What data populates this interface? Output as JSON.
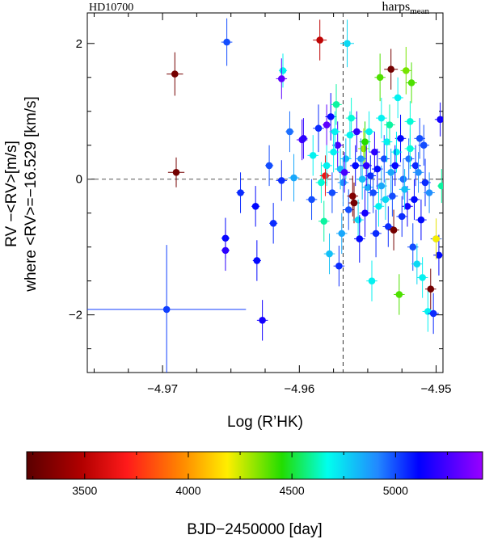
{
  "chart_data": {
    "type": "scatter",
    "star": "HD10700",
    "instrument": "harps",
    "instrument_sub": "mean",
    "xlabel": "Log (R’HK)",
    "ylabel_line1": "RV −<RV>[m/s]",
    "ylabel_line2": "where <RV>=−16.529 [km/s]",
    "xlim": [
      -4.9755,
      -4.9495
    ],
    "ylim": [
      -2.85,
      2.45
    ],
    "x_ticks": [
      -4.97,
      -4.96,
      -4.95
    ],
    "x_tick_labels": [
      "−4.97",
      "−4.96",
      "−4.95"
    ],
    "y_ticks": [
      -2,
      0,
      2
    ],
    "y_tick_labels": [
      "−2",
      "0",
      "2"
    ],
    "ref_hline": 0,
    "ref_vline": -4.9568,
    "colorbar": {
      "label": "BJD−2450000 [day]",
      "range": [
        3220,
        5420
      ],
      "ticks": [
        3500,
        4000,
        4500,
        5000
      ],
      "tick_labels": [
        "3500",
        "4000",
        "4500",
        "5000"
      ]
    },
    "points": [
      {
        "x": -4.9691,
        "y": 1.55,
        "xerr": 0.0006,
        "yerr": 0.32,
        "t": 3300
      },
      {
        "x": -4.969,
        "y": 0.1,
        "xerr": 0.0006,
        "yerr": 0.22,
        "t": 3300
      },
      {
        "x": -4.9697,
        "y": -1.92,
        "xerr": 0.0058,
        "yerr": 0.95,
        "t": 5020
      },
      {
        "x": -4.9653,
        "y": 2.02,
        "xerr": 0.0004,
        "yerr": 0.35,
        "t": 5000
      },
      {
        "x": -4.9654,
        "y": -0.87,
        "xerr": 0.0003,
        "yerr": 0.3,
        "t": 5100
      },
      {
        "x": -4.9654,
        "y": -1.05,
        "xerr": 0.0003,
        "yerr": 0.3,
        "t": 5200
      },
      {
        "x": -4.9643,
        "y": -0.2,
        "xerr": 0.0003,
        "yerr": 0.3,
        "t": 5050
      },
      {
        "x": -4.9632,
        "y": -0.4,
        "xerr": 0.0003,
        "yerr": 0.3,
        "t": 5100
      },
      {
        "x": -4.9631,
        "y": -1.2,
        "xerr": 0.0003,
        "yerr": 0.3,
        "t": 5100
      },
      {
        "x": -4.9627,
        "y": -2.08,
        "xerr": 0.0004,
        "yerr": 0.3,
        "t": 5150
      },
      {
        "x": -4.9619,
        "y": -0.65,
        "xerr": 0.0003,
        "yerr": 0.3,
        "t": 5050
      },
      {
        "x": -4.9622,
        "y": 0.2,
        "xerr": 0.0003,
        "yerr": 0.3,
        "t": 5000
      },
      {
        "x": -4.9613,
        "y": -0.02,
        "xerr": 0.0004,
        "yerr": 0.3,
        "t": 5050
      },
      {
        "x": -4.9612,
        "y": 1.6,
        "xerr": 0.0003,
        "yerr": 0.25,
        "t": 4700
      },
      {
        "x": -4.9613,
        "y": 1.48,
        "xerr": 0.0004,
        "yerr": 0.3,
        "t": 5300
      },
      {
        "x": -4.9607,
        "y": 0.7,
        "xerr": 0.0003,
        "yerr": 0.3,
        "t": 4950
      },
      {
        "x": -4.9604,
        "y": 0.02,
        "xerr": 0.0004,
        "yerr": 0.35,
        "t": 4850
      },
      {
        "x": -4.9598,
        "y": 0.58,
        "xerr": 0.0004,
        "yerr": 0.3,
        "t": 5250
      },
      {
        "x": -4.9597,
        "y": 0.6,
        "xerr": 0.0003,
        "yerr": 0.3,
        "t": 5200
      },
      {
        "x": -4.9585,
        "y": 2.05,
        "xerr": 0.0005,
        "yerr": 0.3,
        "t": 3520
      },
      {
        "x": -4.9591,
        "y": -0.3,
        "xerr": 0.0004,
        "yerr": 0.3,
        "t": 5000
      },
      {
        "x": -4.959,
        "y": 0.35,
        "xerr": 0.0004,
        "yerr": 0.3,
        "t": 4700
      },
      {
        "x": -4.9586,
        "y": 0.75,
        "xerr": 0.0004,
        "yerr": 0.35,
        "t": 5050
      },
      {
        "x": -4.9584,
        "y": -0.05,
        "xerr": 0.0004,
        "yerr": 0.3,
        "t": 4650
      },
      {
        "x": -4.9581,
        "y": 0.05,
        "xerr": 0.0004,
        "yerr": 0.3,
        "t": 3650
      },
      {
        "x": -4.9582,
        "y": -0.62,
        "xerr": 0.0004,
        "yerr": 0.3,
        "t": 4600
      },
      {
        "x": -4.958,
        "y": 0.8,
        "xerr": 0.0003,
        "yerr": 0.3,
        "t": 5300
      },
      {
        "x": -4.9578,
        "y": -1.1,
        "xerr": 0.0004,
        "yerr": 0.3,
        "t": 4800
      },
      {
        "x": -4.9577,
        "y": 0.92,
        "xerr": 0.0004,
        "yerr": 0.35,
        "t": 5100
      },
      {
        "x": -4.9573,
        "y": 1.1,
        "xerr": 0.0004,
        "yerr": 0.3,
        "t": 4600
      },
      {
        "x": -4.9572,
        "y": 0.5,
        "xerr": 0.0004,
        "yerr": 0.35,
        "t": 5250
      },
      {
        "x": -4.9571,
        "y": -1.28,
        "xerr": 0.0004,
        "yerr": 0.3,
        "t": 5050
      },
      {
        "x": -4.9568,
        "y": -0.05,
        "xerr": 0.0004,
        "yerr": 0.35,
        "t": 4900
      },
      {
        "x": -4.9565,
        "y": 2.0,
        "xerr": 0.0005,
        "yerr": 0.35,
        "t": 4750
      },
      {
        "x": -4.9566,
        "y": 0.3,
        "xerr": 0.0004,
        "yerr": 0.3,
        "t": 4800
      },
      {
        "x": -4.9564,
        "y": -0.45,
        "xerr": 0.0004,
        "yerr": 0.3,
        "t": 5000
      },
      {
        "x": -4.9563,
        "y": 0.65,
        "xerr": 0.0004,
        "yerr": 0.35,
        "t": 4700
      },
      {
        "x": -4.9561,
        "y": -0.25,
        "xerr": 0.0004,
        "yerr": 0.3,
        "t": 3350
      },
      {
        "x": -4.956,
        "y": -0.35,
        "xerr": 0.0004,
        "yerr": 0.3,
        "t": 3300
      },
      {
        "x": -4.9559,
        "y": 0.2,
        "xerr": 0.0004,
        "yerr": 0.3,
        "t": 5100
      },
      {
        "x": -4.9557,
        "y": -0.6,
        "xerr": 0.0004,
        "yerr": 0.3,
        "t": 4750
      },
      {
        "x": -4.9556,
        "y": -0.88,
        "xerr": 0.0004,
        "yerr": 0.35,
        "t": 5100
      },
      {
        "x": -4.9553,
        "y": 0.45,
        "xerr": 0.0004,
        "yerr": 0.3,
        "t": 4300
      },
      {
        "x": -4.9552,
        "y": 0.55,
        "xerr": 0.0004,
        "yerr": 0.3,
        "t": 4450
      },
      {
        "x": -4.955,
        "y": -0.12,
        "xerr": 0.0004,
        "yerr": 0.35,
        "t": 4850
      },
      {
        "x": -4.9548,
        "y": 0.05,
        "xerr": 0.0004,
        "yerr": 0.3,
        "t": 5050
      },
      {
        "x": -4.9547,
        "y": -1.5,
        "xerr": 0.0004,
        "yerr": 0.3,
        "t": 4700
      },
      {
        "x": -4.9545,
        "y": 0.4,
        "xerr": 0.0004,
        "yerr": 0.3,
        "t": 5200
      },
      {
        "x": -4.9544,
        "y": -0.8,
        "xerr": 0.0004,
        "yerr": 0.35,
        "t": 5050
      },
      {
        "x": -4.9541,
        "y": 1.5,
        "xerr": 0.0004,
        "yerr": 0.35,
        "t": 4400
      },
      {
        "x": -4.954,
        "y": 0.9,
        "xerr": 0.0004,
        "yerr": 0.3,
        "t": 4700
      },
      {
        "x": -4.9538,
        "y": 0.3,
        "xerr": 0.0004,
        "yerr": 0.35,
        "t": 5000
      },
      {
        "x": -4.9537,
        "y": -0.3,
        "xerr": 0.0004,
        "yerr": 0.3,
        "t": 4750
      },
      {
        "x": -4.9535,
        "y": -0.7,
        "xerr": 0.0004,
        "yerr": 0.3,
        "t": 5050
      },
      {
        "x": -4.9533,
        "y": 1.62,
        "xerr": 0.0005,
        "yerr": 0.3,
        "t": 3300
      },
      {
        "x": -4.9533,
        "y": 0.1,
        "xerr": 0.0004,
        "yerr": 0.35,
        "t": 4850
      },
      {
        "x": -4.9531,
        "y": -0.75,
        "xerr": 0.0004,
        "yerr": 0.3,
        "t": 3300
      },
      {
        "x": -4.9528,
        "y": 1.2,
        "xerr": 0.0004,
        "yerr": 0.3,
        "t": 4700
      },
      {
        "x": -4.9527,
        "y": -1.7,
        "xerr": 0.0004,
        "yerr": 0.3,
        "t": 4400
      },
      {
        "x": -4.9526,
        "y": 0.6,
        "xerr": 0.0004,
        "yerr": 0.35,
        "t": 5100
      },
      {
        "x": -4.9524,
        "y": 0.0,
        "xerr": 0.0004,
        "yerr": 0.3,
        "t": 4950
      },
      {
        "x": -4.9522,
        "y": 1.6,
        "xerr": 0.0004,
        "yerr": 0.35,
        "t": 4350
      },
      {
        "x": -4.9521,
        "y": -0.4,
        "xerr": 0.0004,
        "yerr": 0.3,
        "t": 5150
      },
      {
        "x": -4.9519,
        "y": 0.85,
        "xerr": 0.0004,
        "yerr": 0.3,
        "t": 4650
      },
      {
        "x": -4.9518,
        "y": 1.42,
        "xerr": 0.0004,
        "yerr": 0.3,
        "t": 4400
      },
      {
        "x": -4.9517,
        "y": -1.0,
        "xerr": 0.0004,
        "yerr": 0.35,
        "t": 5000
      },
      {
        "x": -4.9515,
        "y": 0.2,
        "xerr": 0.0004,
        "yerr": 0.3,
        "t": 5050
      },
      {
        "x": -4.9514,
        "y": -1.25,
        "xerr": 0.0004,
        "yerr": 0.3,
        "t": 4750
      },
      {
        "x": -4.9512,
        "y": 0.6,
        "xerr": 0.0004,
        "yerr": 0.3,
        "t": 5000
      },
      {
        "x": -4.9511,
        "y": -0.6,
        "xerr": 0.0004,
        "yerr": 0.3,
        "t": 5100
      },
      {
        "x": -4.951,
        "y": -1.45,
        "xerr": 0.0004,
        "yerr": 0.3,
        "t": 4700
      },
      {
        "x": -4.9508,
        "y": -0.05,
        "xerr": 0.0004,
        "yerr": 0.35,
        "t": 5050
      },
      {
        "x": -4.9506,
        "y": -1.95,
        "xerr": 0.0004,
        "yerr": 0.3,
        "t": 4700
      },
      {
        "x": -4.9504,
        "y": -1.62,
        "xerr": 0.0004,
        "yerr": 0.3,
        "t": 3300
      },
      {
        "x": -4.9502,
        "y": -1.98,
        "xerr": 0.0004,
        "yerr": 0.3,
        "t": 5050
      },
      {
        "x": -4.95,
        "y": -0.88,
        "xerr": 0.0004,
        "yerr": 0.3,
        "t": 5000
      },
      {
        "x": -4.9498,
        "y": -1.12,
        "xerr": 0.0004,
        "yerr": 0.3,
        "t": 5100
      },
      {
        "x": -4.9497,
        "y": 0.88,
        "xerr": 0.0004,
        "yerr": 0.25,
        "t": 5150
      },
      {
        "x": -4.9496,
        "y": -0.1,
        "xerr": 0.0003,
        "yerr": 0.25,
        "t": 4600
      },
      {
        "x": -4.9491,
        "y": -1.55,
        "xerr": 0.0003,
        "yerr": 0.25,
        "t": 4650
      },
      {
        "x": -4.95,
        "y": -0.88,
        "xerr": 0.0003,
        "yerr": 0.3,
        "t": 4200
      },
      {
        "x": -4.9575,
        "y": 0.4,
        "xerr": 0.0004,
        "yerr": 0.3,
        "t": 4700
      },
      {
        "x": -4.957,
        "y": 0.15,
        "xerr": 0.0004,
        "yerr": 0.3,
        "t": 4800
      },
      {
        "x": -4.9562,
        "y": 0.9,
        "xerr": 0.0004,
        "yerr": 0.3,
        "t": 4650
      },
      {
        "x": -4.9558,
        "y": 0.7,
        "xerr": 0.0004,
        "yerr": 0.3,
        "t": 5200
      },
      {
        "x": -4.9555,
        "y": 0.3,
        "xerr": 0.0004,
        "yerr": 0.3,
        "t": 4900
      },
      {
        "x": -4.9552,
        "y": -0.5,
        "xerr": 0.0004,
        "yerr": 0.35,
        "t": 5150
      },
      {
        "x": -4.9549,
        "y": 0.7,
        "xerr": 0.0004,
        "yerr": 0.3,
        "t": 4700
      },
      {
        "x": -4.9546,
        "y": -0.2,
        "xerr": 0.0004,
        "yerr": 0.3,
        "t": 5000
      },
      {
        "x": -4.9543,
        "y": 0.15,
        "xerr": 0.0004,
        "yerr": 0.3,
        "t": 5100
      },
      {
        "x": -4.954,
        "y": -0.1,
        "xerr": 0.0004,
        "yerr": 0.3,
        "t": 4850
      },
      {
        "x": -4.9536,
        "y": 0.55,
        "xerr": 0.0004,
        "yerr": 0.3,
        "t": 4700
      },
      {
        "x": -4.9532,
        "y": -0.25,
        "xerr": 0.0004,
        "yerr": 0.3,
        "t": 5000
      },
      {
        "x": -4.9529,
        "y": 0.4,
        "xerr": 0.0004,
        "yerr": 0.3,
        "t": 4700
      },
      {
        "x": -4.9525,
        "y": -0.55,
        "xerr": 0.0004,
        "yerr": 0.3,
        "t": 5050
      },
      {
        "x": -4.952,
        "y": 0.3,
        "xerr": 0.0004,
        "yerr": 0.3,
        "t": 4950
      },
      {
        "x": -4.9516,
        "y": -0.3,
        "xerr": 0.0004,
        "yerr": 0.3,
        "t": 5100
      },
      {
        "x": -4.9513,
        "y": 0.1,
        "xerr": 0.0004,
        "yerr": 0.3,
        "t": 4900
      },
      {
        "x": -4.9509,
        "y": 0.5,
        "xerr": 0.0004,
        "yerr": 0.3,
        "t": 5000
      },
      {
        "x": -4.958,
        "y": 0.2,
        "xerr": 0.0004,
        "yerr": 0.3,
        "t": 4700
      },
      {
        "x": -4.9576,
        "y": -0.2,
        "xerr": 0.0004,
        "yerr": 0.3,
        "t": 5000
      },
      {
        "x": -4.9574,
        "y": 0.7,
        "xerr": 0.0004,
        "yerr": 0.3,
        "t": 4700
      },
      {
        "x": -4.9569,
        "y": -0.8,
        "xerr": 0.0004,
        "yerr": 0.3,
        "t": 4850
      },
      {
        "x": -4.9567,
        "y": 0.1,
        "xerr": 0.0004,
        "yerr": 0.3,
        "t": 5250
      },
      {
        "x": -4.9554,
        "y": 0.0,
        "xerr": 0.0004,
        "yerr": 0.3,
        "t": 4800
      },
      {
        "x": -4.9551,
        "y": 0.2,
        "xerr": 0.0004,
        "yerr": 0.3,
        "t": 5200
      },
      {
        "x": -4.9542,
        "y": -0.4,
        "xerr": 0.0004,
        "yerr": 0.3,
        "t": 4700
      },
      {
        "x": -4.9534,
        "y": 0.8,
        "xerr": 0.0004,
        "yerr": 0.3,
        "t": 4600
      },
      {
        "x": -4.953,
        "y": 0.2,
        "xerr": 0.0004,
        "yerr": 0.3,
        "t": 5100
      },
      {
        "x": -4.9523,
        "y": -0.15,
        "xerr": 0.0004,
        "yerr": 0.3,
        "t": 4800
      },
      {
        "x": -4.9519,
        "y": 0.45,
        "xerr": 0.0004,
        "yerr": 0.3,
        "t": 4650
      },
      {
        "x": -4.9505,
        "y": -0.2,
        "xerr": 0.0004,
        "yerr": 0.3,
        "t": 4900
      }
    ]
  }
}
